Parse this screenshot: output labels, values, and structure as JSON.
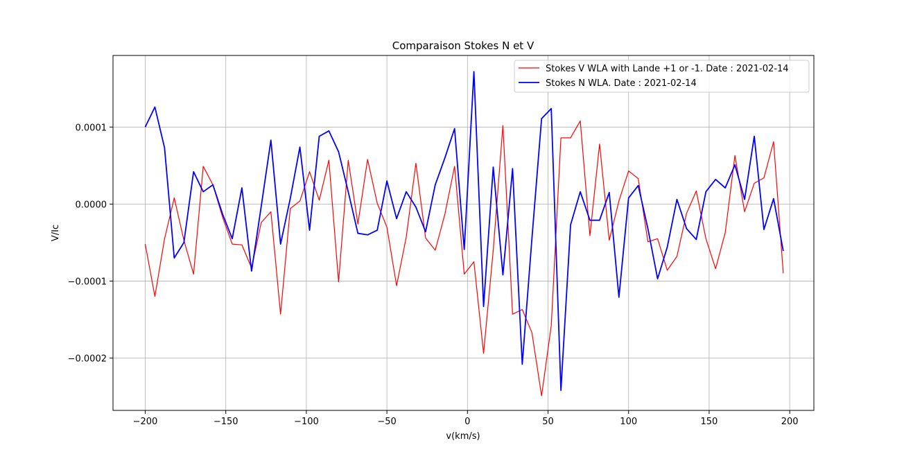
{
  "chart_data": {
    "type": "line",
    "title": "Comparaison Stokes N et V",
    "xlabel": "v(km/s)",
    "ylabel": "V/Ic",
    "xlim": [
      -220,
      215
    ],
    "ylim": [
      -0.000268,
      0.000193
    ],
    "xticks": [
      -200,
      -150,
      -100,
      -50,
      0,
      50,
      100,
      150,
      200
    ],
    "xtick_labels": [
      "−200",
      "−150",
      "−100",
      "−50",
      "0",
      "50",
      "100",
      "150",
      "200"
    ],
    "yticks": [
      0.0001,
      0.0,
      -0.0001,
      -0.0002
    ],
    "ytick_labels": [
      "0.0001",
      "0.0000",
      "−0.0001",
      "−0.0002"
    ],
    "grid": true,
    "legend_position": "top-right",
    "x": [
      -200,
      -194,
      -188,
      -182,
      -176,
      -170,
      -164,
      -158,
      -152,
      -146,
      -140,
      -134,
      -128,
      -122,
      -116,
      -110,
      -104,
      -98,
      -92,
      -86,
      -80,
      -74,
      -68,
      -62,
      -56,
      -50,
      -44,
      -38,
      -32,
      -26,
      -20,
      -14,
      -8,
      -2,
      4,
      10,
      16,
      22,
      28,
      34,
      40,
      46,
      52,
      58,
      64,
      70,
      76,
      82,
      88,
      94,
      100,
      106,
      112,
      118,
      124,
      130,
      136,
      142,
      148,
      154,
      160,
      166,
      172,
      178,
      184,
      190,
      196
    ],
    "series": [
      {
        "name": "Stokes V WLA with Lande +1 or -1. Date : 2021-02-14",
        "color": "#ff0000",
        "line_width": 1.2,
        "values": [
          -5.2e-05,
          -0.00012,
          -4.5e-05,
          8e-06,
          -4.7e-05,
          -9.1e-05,
          4.9e-05,
          2.5e-05,
          -1.7e-05,
          -5.2e-05,
          -5.3e-05,
          -8.3e-05,
          -2.4e-05,
          -1e-05,
          -0.000143,
          -6e-06,
          4e-06,
          4.2e-05,
          5e-06,
          5.7e-05,
          -0.000101,
          5.7e-05,
          -2.6e-05,
          5.8e-05,
          1e-06,
          -3e-05,
          -0.000106,
          -4.3e-05,
          5.3e-05,
          -4.4e-05,
          -6e-05,
          -1.3e-05,
          4.9e-05,
          -9.1e-05,
          -7.5e-05,
          -0.000194,
          -6e-05,
          0.000102,
          -0.000143,
          -0.000137,
          -0.000167,
          -0.000249,
          -0.000158,
          8.6e-05,
          8.6e-05,
          0.000108,
          -4.1e-05,
          7.8e-05,
          -4.7e-05,
          4e-06,
          4.3e-05,
          3.3e-05,
          -4.9e-05,
          -4.5e-05,
          -8.6e-05,
          -6.8e-05,
          -1.2e-05,
          1.7e-05,
          -4.5e-05,
          -8.4e-05,
          -3.7e-05,
          6.3e-05,
          -1e-05,
          2.7e-05,
          3.4e-05,
          8.1e-05,
          -9e-05
        ]
      },
      {
        "name": "Stokes N WLA. Date : 2021-02-14",
        "color": "#0000ff",
        "line_width": 1.8,
        "values": [
          0.0001,
          0.000126,
          7.3e-05,
          -7e-05,
          -5e-05,
          4.2e-05,
          1.6e-05,
          2.5e-05,
          -1.3e-05,
          -4.5e-05,
          2.1e-05,
          -8.7e-05,
          -3e-06,
          8.3e-05,
          -5.2e-05,
          7e-06,
          7.4e-05,
          -3.4e-05,
          8.8e-05,
          9.5e-05,
          6.8e-05,
          1.6e-05,
          -3.8e-05,
          -4e-05,
          -3.4e-05,
          3e-05,
          -1.9e-05,
          1.6e-05,
          -4e-06,
          -3.6e-05,
          2.5e-05,
          6e-05,
          9.8e-05,
          -5.9e-05,
          0.000172,
          -0.000133,
          4.8e-05,
          -9.2e-05,
          4.6e-05,
          -0.000208,
          -4.5e-05,
          0.000111,
          0.000124,
          -0.000242,
          -2.7e-05,
          1.6e-05,
          -2.1e-05,
          -2.1e-05,
          1.5e-05,
          -0.000121,
          8e-06,
          2.4e-05,
          -3.2e-05,
          -9.7e-05,
          -5.6e-05,
          6e-06,
          -3.2e-05,
          -4.6e-05,
          1.6e-05,
          3.2e-05,
          2.1e-05,
          5.1e-05,
          6e-06,
          8.8e-05,
          -3.3e-05,
          7e-06,
          -6.1e-05
        ]
      }
    ]
  }
}
